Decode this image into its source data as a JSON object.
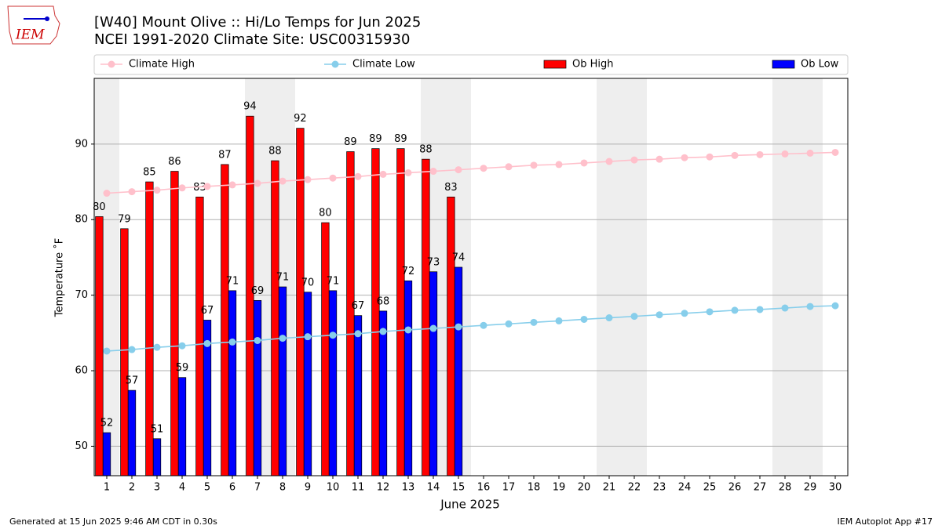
{
  "chart_data": {
    "type": "bar",
    "title": "[W40] Mount Olive :: Hi/Lo Temps for Jun 2025",
    "subtitle": "NCEI 1991-2020 Climate Site: USC00315930",
    "logo_text": "IEM",
    "xlabel": "June 2025",
    "ylabel": "Temperature ˚F",
    "footer_left": "Generated at 15 Jun 2025 9:46 AM CDT in 0.30s",
    "footer_right": "IEM Autoplot App #17",
    "x": [
      1,
      2,
      3,
      4,
      5,
      6,
      7,
      8,
      9,
      10,
      11,
      12,
      13,
      14,
      15,
      16,
      17,
      18,
      19,
      20,
      21,
      22,
      23,
      24,
      25,
      26,
      27,
      28,
      29,
      30
    ],
    "xlim": [
      0.5,
      30.5
    ],
    "xticks": [
      1,
      2,
      3,
      4,
      5,
      6,
      7,
      8,
      9,
      10,
      11,
      12,
      13,
      14,
      15,
      16,
      17,
      18,
      19,
      20,
      21,
      22,
      23,
      24,
      25,
      26,
      27,
      28,
      29,
      30
    ],
    "ylim": [
      46.1,
      98.7
    ],
    "yticks": [
      50,
      60,
      70,
      80,
      90
    ],
    "grid": true,
    "legend": "top",
    "highlight_days": [
      1,
      7,
      8,
      14,
      15,
      21,
      22,
      28,
      29
    ],
    "highlight_color": "#eeeeee",
    "series": [
      {
        "name": "Climate High",
        "type": "line",
        "color": "#ffc0cb",
        "values": [
          83.5,
          83.7,
          83.9,
          84.2,
          84.4,
          84.6,
          84.8,
          85.1,
          85.3,
          85.5,
          85.7,
          86.0,
          86.2,
          86.4,
          86.6,
          86.8,
          87.0,
          87.2,
          87.3,
          87.5,
          87.7,
          87.9,
          88.0,
          88.2,
          88.3,
          88.5,
          88.6,
          88.7,
          88.8,
          88.9
        ]
      },
      {
        "name": "Climate Low",
        "type": "line",
        "color": "#87ceeb",
        "values": [
          62.6,
          62.8,
          63.1,
          63.3,
          63.6,
          63.8,
          64.0,
          64.3,
          64.5,
          64.7,
          64.9,
          65.2,
          65.4,
          65.6,
          65.8,
          66.0,
          66.2,
          66.4,
          66.6,
          66.8,
          67.0,
          67.2,
          67.4,
          67.6,
          67.8,
          68.0,
          68.1,
          68.3,
          68.5,
          68.6
        ]
      },
      {
        "name": "Ob High",
        "type": "bar",
        "color": "#ff0000",
        "values": [
          80.4,
          78.8,
          85.0,
          86.4,
          83.0,
          87.3,
          93.7,
          87.8,
          92.1,
          79.6,
          89.0,
          89.4,
          89.4,
          88.0,
          83.0,
          null,
          null,
          null,
          null,
          null,
          null,
          null,
          null,
          null,
          null,
          null,
          null,
          null,
          null,
          null
        ],
        "value_labels": [
          "80",
          "79",
          "85",
          "86",
          "83",
          "87",
          "94",
          "88",
          "92",
          "80",
          "89",
          "89",
          "89",
          "88",
          "83",
          null,
          null,
          null,
          null,
          null,
          null,
          null,
          null,
          null,
          null,
          null,
          null,
          null,
          null,
          null
        ]
      },
      {
        "name": "Ob Low",
        "type": "bar",
        "color": "#0000ff",
        "values": [
          51.8,
          57.4,
          51.0,
          59.1,
          66.7,
          70.6,
          69.3,
          71.1,
          70.4,
          70.6,
          67.3,
          67.9,
          71.9,
          73.1,
          73.7,
          null,
          null,
          null,
          null,
          null,
          null,
          null,
          null,
          null,
          null,
          null,
          null,
          null,
          null,
          null
        ],
        "value_labels": [
          "52",
          "57",
          "51",
          "59",
          "67",
          "71",
          "69",
          "71",
          "70",
          "71",
          "67",
          "68",
          "72",
          "73",
          "74",
          null,
          null,
          null,
          null,
          null,
          null,
          null,
          null,
          null,
          null,
          null,
          null,
          null,
          null,
          null
        ]
      }
    ]
  }
}
